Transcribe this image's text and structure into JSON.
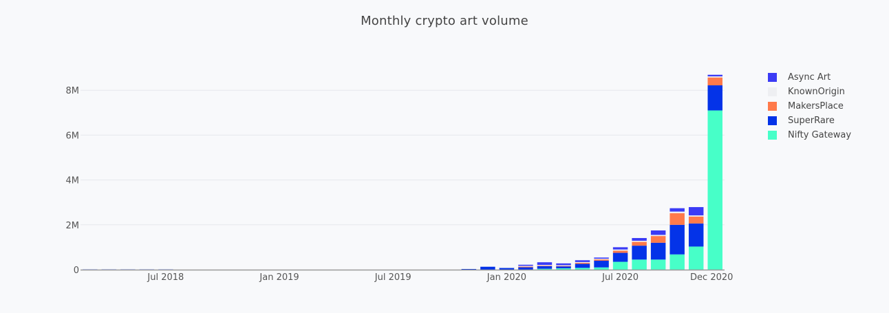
{
  "title": "Monthly crypto art volume",
  "legend": [
    {
      "label": "Async Art",
      "color": "#3b3bf5"
    },
    {
      "label": "KnownOrigin",
      "color": "#eeeff2"
    },
    {
      "label": "MakersPlace",
      "color": "#ff7a4a"
    },
    {
      "label": "SuperRare",
      "color": "#0433e8"
    },
    {
      "label": "Nifty Gateway",
      "color": "#47ffc8"
    }
  ],
  "chart_data": {
    "type": "bar",
    "barmode": "stack",
    "title": "Monthly crypto art volume",
    "xlabel": "",
    "ylabel": "",
    "ylim": [
      0,
      8700000
    ],
    "yticks": [
      0,
      2000000,
      4000000,
      6000000,
      8000000
    ],
    "ytick_labels": [
      "0",
      "2M",
      "4M",
      "6M",
      "8M"
    ],
    "xtick_labels": [
      "Jul 2018",
      "Jan 2019",
      "Jul 2019",
      "Jan 2020",
      "Jul 2020",
      "Dec 2020"
    ],
    "legend_position": "right",
    "grid": true,
    "categories": [
      "Mar 2018",
      "Apr 2018",
      "May 2018",
      "Jun 2018",
      "Jul 2018",
      "Aug 2018",
      "Sep 2018",
      "Oct 2018",
      "Nov 2018",
      "Dec 2018",
      "Jan 2019",
      "Feb 2019",
      "Mar 2019",
      "Apr 2019",
      "May 2019",
      "Jun 2019",
      "Jul 2019",
      "Aug 2019",
      "Sep 2019",
      "Oct 2019",
      "Nov 2019",
      "Dec 2019",
      "Jan 2020",
      "Feb 2020",
      "Mar 2020",
      "Apr 2020",
      "May 2020",
      "Jun 2020",
      "Jul 2020",
      "Aug 2020",
      "Sep 2020",
      "Oct 2020",
      "Nov 2020",
      "Dec 2020"
    ],
    "series": [
      {
        "name": "Nifty Gateway",
        "color": "#47ffc8",
        "values": [
          0,
          0,
          0,
          0,
          0,
          0,
          0,
          0,
          0,
          0,
          0,
          0,
          0,
          0,
          0,
          0,
          0,
          0,
          0,
          0,
          0,
          0,
          0,
          0,
          40000,
          60000,
          80000,
          100000,
          350000,
          450000,
          450000,
          680000,
          1030000,
          7100000
        ]
      },
      {
        "name": "SuperRare",
        "color": "#0433e8",
        "values": [
          10000,
          10000,
          10000,
          10000,
          10000,
          0,
          0,
          0,
          0,
          0,
          0,
          0,
          0,
          0,
          0,
          0,
          0,
          0,
          0,
          0,
          30000,
          130000,
          100000,
          120000,
          120000,
          100000,
          180000,
          300000,
          400000,
          620000,
          750000,
          1320000,
          1030000,
          1120000
        ]
      },
      {
        "name": "MakersPlace",
        "color": "#ff7a4a",
        "values": [
          0,
          0,
          0,
          0,
          0,
          0,
          0,
          0,
          0,
          0,
          0,
          0,
          0,
          0,
          0,
          0,
          0,
          0,
          0,
          0,
          0,
          0,
          0,
          20000,
          30000,
          20000,
          50000,
          60000,
          100000,
          170000,
          300000,
          520000,
          310000,
          350000
        ]
      },
      {
        "name": "KnownOrigin",
        "color": "#eeeff2",
        "values": [
          0,
          0,
          0,
          0,
          0,
          0,
          0,
          0,
          0,
          0,
          0,
          0,
          0,
          0,
          0,
          0,
          0,
          0,
          0,
          0,
          0,
          0,
          10000,
          30000,
          20000,
          20000,
          30000,
          30000,
          50000,
          50000,
          50000,
          70000,
          50000,
          50000
        ]
      },
      {
        "name": "Async Art",
        "color": "#3b3bf5",
        "values": [
          0,
          0,
          0,
          0,
          0,
          0,
          0,
          0,
          0,
          0,
          0,
          0,
          0,
          0,
          0,
          0,
          0,
          0,
          0,
          0,
          0,
          0,
          0,
          50000,
          120000,
          80000,
          80000,
          50000,
          100000,
          120000,
          200000,
          150000,
          370000,
          70000
        ]
      }
    ]
  }
}
